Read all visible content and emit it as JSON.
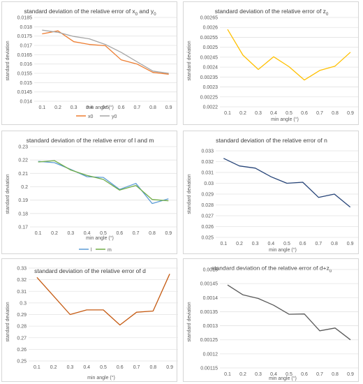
{
  "chart_data": [
    {
      "type": "line",
      "title": "standard deviation of the relative error of x",
      "title_parts": [
        "x",
        "0",
        " and y",
        "0"
      ],
      "xlabel": "min angle (°)",
      "ylabel": "standard deviation",
      "x": [
        0.1,
        0.2,
        0.3,
        0.4,
        0.5,
        0.6,
        0.7,
        0.8,
        0.9
      ],
      "xticks": [
        "0.1",
        "0.2",
        "0.3",
        "0.4",
        "0.5",
        "0.6",
        "0.7",
        "0.8",
        "0.9"
      ],
      "ylim": [
        0.014,
        0.0185
      ],
      "yticks": [
        "0.014",
        "0.0145",
        "0.015",
        "0.0155",
        "0.016",
        "0.0165",
        "0.017",
        "0.0175",
        "0.018",
        "0.0185"
      ],
      "grid": true,
      "legend": "bottom",
      "series": [
        {
          "name": "x0",
          "color": "#ed7d31",
          "values": [
            0.01762,
            0.01778,
            0.0172,
            0.01705,
            0.01698,
            0.01622,
            0.016,
            0.01555,
            0.01545
          ]
        },
        {
          "name": "y0",
          "color": "#a5a5a5",
          "values": [
            0.01782,
            0.0177,
            0.01748,
            0.01735,
            0.01705,
            0.01662,
            0.01612,
            0.01562,
            0.0155
          ]
        }
      ]
    },
    {
      "type": "line",
      "title": "standard deviation of the relative error of z",
      "title_parts": [
        "z",
        "0"
      ],
      "xlabel": "min angle (°)",
      "ylabel": "standard deviation",
      "x": [
        0.1,
        0.2,
        0.3,
        0.4,
        0.5,
        0.6,
        0.7,
        0.8,
        0.9
      ],
      "xticks": [
        "0.1",
        "0.2",
        "0.3",
        "0.4",
        "0.5",
        "0.6",
        "0.7",
        "0.8",
        "0.9"
      ],
      "ylim": [
        0.0022,
        0.00265
      ],
      "yticks": [
        "0.0022",
        "0.00225",
        "0.0023",
        "0.00235",
        "0.0024",
        "0.00245",
        "0.0025",
        "0.00255",
        "0.0026",
        "0.00265"
      ],
      "grid": true,
      "legend": "none",
      "series": [
        {
          "color": "#ffc000",
          "values": [
            0.00259,
            0.00246,
            0.002388,
            0.002452,
            0.002402,
            0.002335,
            0.002383,
            0.002405,
            0.002475
          ]
        }
      ]
    },
    {
      "type": "line",
      "title": "standard deviation of the relative error of l and m",
      "xlabel": "min angle (°)",
      "ylabel": "standard deviation",
      "x": [
        0.1,
        0.2,
        0.3,
        0.4,
        0.5,
        0.6,
        0.7,
        0.8,
        0.9
      ],
      "xticks": [
        "0.1",
        "0.2",
        "0.3",
        "0.4",
        "0.5",
        "0.6",
        "0.7",
        "0.8",
        "0.9"
      ],
      "ylim": [
        0.17,
        0.23
      ],
      "yticks": [
        "0.17",
        "0.18",
        "0.19",
        "0.2",
        "0.21",
        "0.22",
        "0.23"
      ],
      "grid": true,
      "legend": "bottom",
      "series": [
        {
          "name": "l",
          "color": "#5b9bd5",
          "values": [
            0.219,
            0.218,
            0.213,
            0.2075,
            0.207,
            0.198,
            0.2025,
            0.1875,
            0.191
          ]
        },
        {
          "name": "m",
          "color": "#70ad47",
          "values": [
            0.2185,
            0.2195,
            0.2125,
            0.2085,
            0.2055,
            0.1975,
            0.201,
            0.1905,
            0.1895
          ]
        }
      ]
    },
    {
      "type": "line",
      "title": "standard deviation of the relative error of n",
      "xlabel": "min angle (°)",
      "ylabel": "standard deviation",
      "x": [
        0.1,
        0.2,
        0.3,
        0.4,
        0.5,
        0.6,
        0.7,
        0.8,
        0.9
      ],
      "xticks": [
        "0.1",
        "0.2",
        "0.3",
        "0.4",
        "0.5",
        "0.6",
        "0.7",
        "0.8",
        "0.9"
      ],
      "ylim": [
        0.025,
        0.033
      ],
      "yticks": [
        "0.025",
        "0.026",
        "0.027",
        "0.028",
        "0.029",
        "0.03",
        "0.031",
        "0.032",
        "0.033"
      ],
      "grid": true,
      "legend": "none",
      "series": [
        {
          "color": "#264478",
          "values": [
            0.0323,
            0.0316,
            0.0314,
            0.0306,
            0.03,
            0.0301,
            0.0287,
            0.029,
            0.0278
          ]
        }
      ]
    },
    {
      "type": "line",
      "title": "standard deviation of the relative error of d",
      "xlabel": "min angle (°)",
      "ylabel": "standard deviation",
      "x": [
        0.1,
        0.2,
        0.3,
        0.4,
        0.5,
        0.6,
        0.7,
        0.8,
        0.9
      ],
      "xticks": [
        "0.1",
        "0.2",
        "0.3",
        "0.4",
        "0.5",
        "0.6",
        "0.7",
        "0.8",
        "0.9"
      ],
      "ylim": [
        0.25,
        0.33
      ],
      "yticks": [
        "0.25",
        "0.26",
        "0.27",
        "0.28",
        "0.29",
        "0.3",
        "0.31",
        "0.32",
        "0.33"
      ],
      "grid": true,
      "legend": "none",
      "series": [
        {
          "color": "#c55a11",
          "values": [
            0.322,
            0.306,
            0.29,
            0.294,
            0.294,
            0.281,
            0.292,
            0.293,
            0.325
          ]
        }
      ]
    },
    {
      "type": "line",
      "title": "standard deviation of the relative error of d+z",
      "title_parts": [
        "z",
        "0"
      ],
      "xlabel": "min angle (°)",
      "ylabel": "standard deviation",
      "x": [
        0.1,
        0.2,
        0.3,
        0.4,
        0.5,
        0.6,
        0.7,
        0.8,
        0.9
      ],
      "xticks": [
        "0.1",
        "0.2",
        "0.3",
        "0.4",
        "0.5",
        "0.6",
        "0.7",
        "0.8",
        "0.9"
      ],
      "ylim": [
        0.00115,
        0.0015
      ],
      "yticks": [
        "0.00115",
        "0.0012",
        "0.00125",
        "0.0013",
        "0.00135",
        "0.0014",
        "0.00145",
        "0.0015"
      ],
      "grid": true,
      "legend": "none",
      "series": [
        {
          "color": "#595959",
          "values": [
            0.001445,
            0.00141,
            0.001397,
            0.001373,
            0.001341,
            0.001342,
            0.001282,
            0.001292,
            0.00125
          ]
        }
      ]
    }
  ]
}
